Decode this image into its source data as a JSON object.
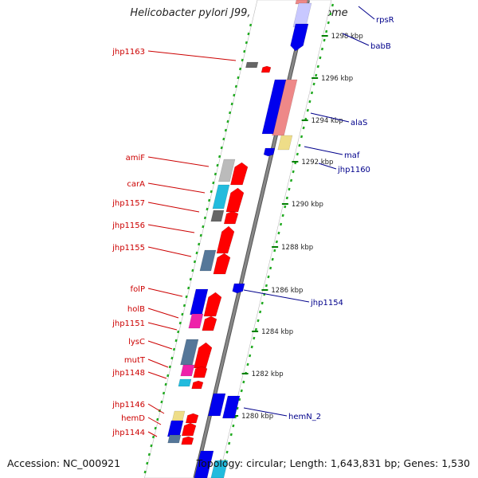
{
  "title": "Helicobacter pylori J99, complete genome",
  "accession": "Accession: NC_000921",
  "topology": "Topology: circular; Length: 1,643,831 bp; Genes: 1,530",
  "colors": {
    "ring": "#888888",
    "tick_major": "#008000",
    "tick_minor": "#22aa22",
    "label_left": "#cc0000",
    "label_right": "#00008b",
    "gene_red": "#ff0000",
    "gene_blue": "#0000ee",
    "gene_pink": "#ee8888",
    "gene_lavender": "#c8c8ff",
    "gene_grey": "#999999",
    "gene_cyan": "#22bbdd",
    "gene_magenta": "#ee22aa",
    "gene_yellow": "#eedd88",
    "gene_slate": "#557799"
  },
  "scale_labels": [
    "1298 kbp",
    "1296 kbp",
    "1294 kbp",
    "1292 kbp",
    "1290 kbp",
    "1288 kbp",
    "1286 kbp",
    "1284 kbp",
    "1282 kbp",
    "1280 kbp"
  ],
  "labels_left": [
    "jhp1163",
    "amiF",
    "carA",
    "jhp1157",
    "jhp1156",
    "jhp1155",
    "folP",
    "holB",
    "jhp1151",
    "lysC",
    "mutT",
    "jhp1148",
    "jhp1146",
    "hemD",
    "jhp1144"
  ],
  "labels_right": [
    "rpsR",
    "babB",
    "alaS",
    "maf",
    "jhp1160",
    "jhp1154",
    "hemN_2"
  ]
}
